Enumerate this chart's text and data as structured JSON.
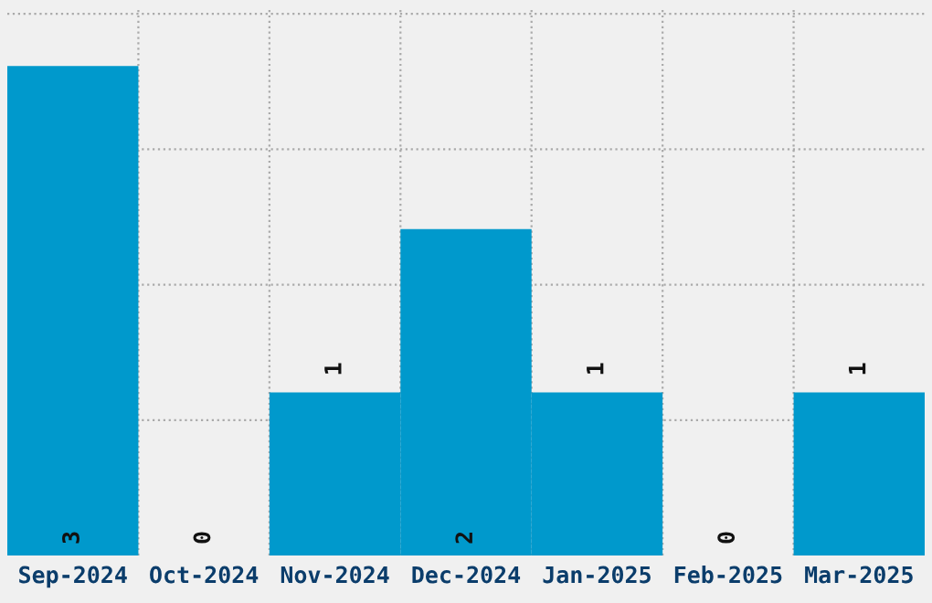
{
  "chart_data": {
    "type": "bar",
    "categories": [
      "Sep-2024",
      "Oct-2024",
      "Nov-2024",
      "Dec-2024",
      "Jan-2025",
      "Feb-2025",
      "Mar-2025"
    ],
    "values": [
      3,
      0,
      1,
      2,
      1,
      0,
      1
    ],
    "color": "#0099cc",
    "data_labels": true,
    "grid": true,
    "tick_labels": "x",
    "ylim": [
      0,
      3.36
    ],
    "yticks": [
      {
        "value": 0.83,
        "label": null
      },
      {
        "value": 1.66,
        "label": null
      },
      {
        "value": 2.49,
        "label": null
      },
      {
        "value": 3.32,
        "label": null
      }
    ]
  }
}
